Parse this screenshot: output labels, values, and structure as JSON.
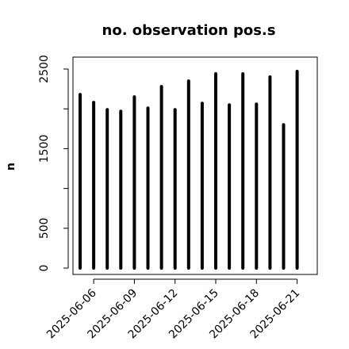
{
  "chart_data": {
    "type": "bar",
    "title": "no. observation pos.s",
    "xlabel": "",
    "ylabel": "n",
    "ylim": [
      0,
      2550
    ],
    "y_ticks": [
      0,
      500,
      1500,
      2500
    ],
    "grid": false,
    "x_tick_labels": [
      {
        "label": "2025-06-06",
        "color": "#000000"
      },
      {
        "label": "2025-06-09",
        "color": "#000000"
      },
      {
        "label": "2025-06-12",
        "color": "#2e8b2e"
      },
      {
        "label": "2025-06-15",
        "color": "#000000"
      },
      {
        "label": "2025-06-18",
        "color": "#000000"
      },
      {
        "label": "2025-06-21",
        "color": "#000000"
      }
    ],
    "x": [
      "2025-06-05",
      "2025-06-06",
      "2025-06-07",
      "2025-06-08",
      "2025-06-09",
      "2025-06-10",
      "2025-06-11",
      "2025-06-12",
      "2025-06-13",
      "2025-06-14",
      "2025-06-15",
      "2025-06-16",
      "2025-06-17",
      "2025-06-18",
      "2025-06-19",
      "2025-06-20",
      "2025-06-21"
    ],
    "values": [
      2180,
      2080,
      1990,
      1970,
      2150,
      2010,
      2280,
      1990,
      2350,
      2070,
      2440,
      2050,
      2440,
      2060,
      2400,
      1800,
      2470
    ],
    "colors": {
      "bars": "#000000",
      "axis": "#000000",
      "highlight_tick": "#2e8b2e"
    }
  }
}
